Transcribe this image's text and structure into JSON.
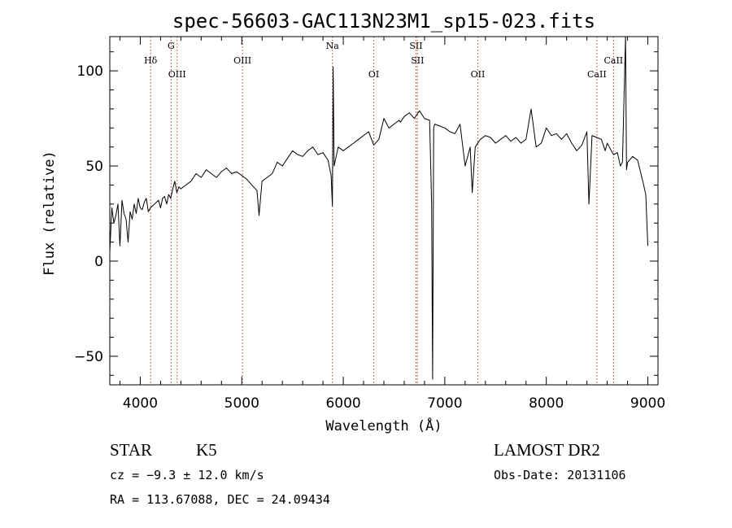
{
  "chart_data": {
    "type": "line",
    "title": "spec-56603-GAC113N23M1_sp15-023.fits",
    "xlabel": "Wavelength (Å)",
    "ylabel": "Flux (relative)",
    "xlim": [
      3700,
      9100
    ],
    "ylim": [
      -65,
      118
    ],
    "x_ticks": [
      4000,
      5000,
      6000,
      7000,
      8000,
      9000
    ],
    "y_ticks": [
      -50,
      0,
      50,
      100
    ],
    "grid": false,
    "series": [
      {
        "color": "#000000",
        "x": [
          3700,
          3720,
          3740,
          3760,
          3780,
          3800,
          3820,
          3840,
          3860,
          3880,
          3900,
          3920,
          3940,
          3960,
          3980,
          4000,
          4020,
          4040,
          4060,
          4080,
          4100,
          4120,
          4140,
          4160,
          4180,
          4200,
          4220,
          4240,
          4260,
          4280,
          4300,
          4320,
          4340,
          4360,
          4380,
          4400,
          4450,
          4500,
          4550,
          4600,
          4650,
          4700,
          4750,
          4800,
          4850,
          4900,
          4950,
          5000,
          5050,
          5100,
          5150,
          5170,
          5200,
          5250,
          5300,
          5350,
          5400,
          5450,
          5500,
          5550,
          5600,
          5650,
          5700,
          5750,
          5800,
          5850,
          5880,
          5893,
          5900,
          5910,
          5930,
          5950,
          6000,
          6050,
          6100,
          6150,
          6200,
          6250,
          6300,
          6350,
          6400,
          6450,
          6500,
          6550,
          6563,
          6600,
          6650,
          6700,
          6750,
          6800,
          6850,
          6870,
          6880,
          6890,
          6900,
          6950,
          7000,
          7050,
          7100,
          7150,
          7200,
          7250,
          7270,
          7300,
          7350,
          7400,
          7450,
          7500,
          7550,
          7600,
          7650,
          7700,
          7750,
          7800,
          7850,
          7900,
          7950,
          8000,
          8050,
          8100,
          8150,
          8200,
          8250,
          8300,
          8350,
          8400,
          8420,
          8450,
          8498,
          8542,
          8580,
          8600,
          8620,
          8640,
          8662,
          8700,
          8730,
          8750,
          8780,
          8790,
          8800,
          8850,
          8900,
          8950,
          8980,
          9000
        ],
        "y": [
          5,
          28,
          20,
          24,
          30,
          8,
          32,
          25,
          22,
          10,
          26,
          22,
          30,
          25,
          33,
          28,
          27,
          31,
          33,
          26,
          28,
          29,
          30,
          31,
          32,
          28,
          33,
          34,
          30,
          35,
          33,
          38,
          42,
          36,
          39,
          38,
          40,
          42,
          46,
          44,
          48,
          46,
          44,
          47,
          49,
          46,
          47,
          45,
          43,
          40,
          37,
          24,
          42,
          44,
          46,
          52,
          50,
          54,
          58,
          56,
          55,
          58,
          60,
          56,
          57,
          53,
          45,
          29,
          102,
          50,
          55,
          60,
          58,
          60,
          62,
          64,
          66,
          68,
          61,
          64,
          75,
          70,
          72,
          74,
          73,
          76,
          78,
          75,
          79,
          75,
          74,
          30,
          -62,
          70,
          72,
          71,
          70,
          68,
          67,
          72,
          50,
          60,
          36,
          60,
          64,
          66,
          65,
          62,
          64,
          66,
          63,
          65,
          62,
          64,
          80,
          60,
          62,
          70,
          66,
          67,
          64,
          67,
          62,
          58,
          61,
          68,
          30,
          66,
          65,
          64,
          58,
          62,
          60,
          58,
          56,
          57,
          50,
          52,
          118,
          48,
          52,
          55,
          53,
          42,
          35,
          8
        ]
      }
    ],
    "line_markers": [
      {
        "label": "Hδ",
        "x": 4102,
        "row": 2
      },
      {
        "label": "G",
        "x": 4304,
        "row": 1
      },
      {
        "label": "OIII",
        "x": 4363,
        "row": 3
      },
      {
        "label": "OIII",
        "x": 5007,
        "row": 2
      },
      {
        "label": "Na",
        "x": 5893,
        "row": 1
      },
      {
        "label": "OI",
        "x": 6300,
        "row": 3
      },
      {
        "label": "SII",
        "x": 6716,
        "row": 1
      },
      {
        "label": "SII",
        "x": 6731,
        "row": 2
      },
      {
        "label": "OII",
        "x": 7325,
        "row": 3
      },
      {
        "label": "CaII",
        "x": 8498,
        "row": 3
      },
      {
        "label": "CaII",
        "x": 8662,
        "row": 2
      }
    ],
    "line_marker_color": "#c0392b"
  },
  "footer": {
    "object_class": "STAR",
    "subclass": "K5",
    "redshift": "cz = −9.3 ± 12.0 km/s",
    "coords": "RA = 113.67088, DEC =  24.09434",
    "survey": "LAMOST DR2",
    "obs_date": "Obs-Date: 20131106"
  }
}
